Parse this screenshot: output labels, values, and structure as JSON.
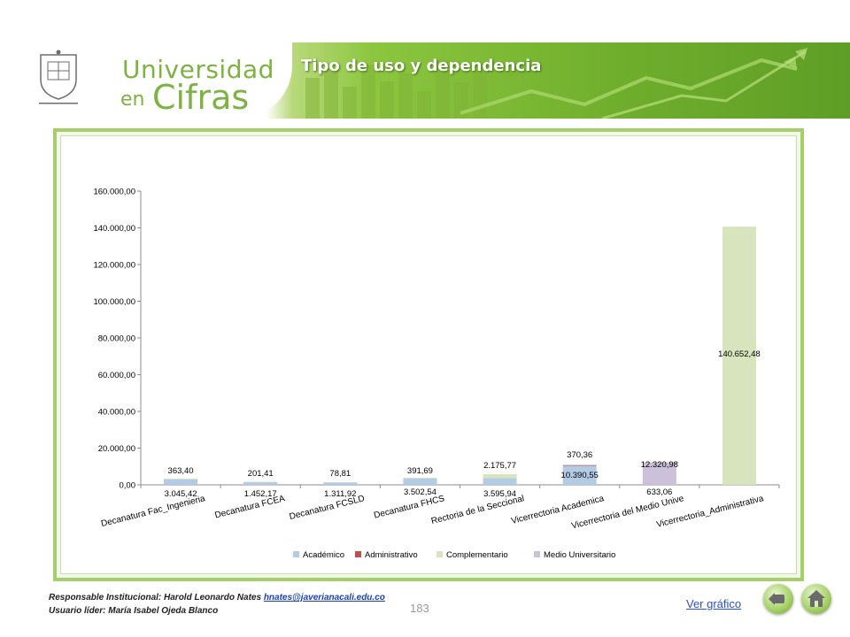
{
  "header": {
    "logo_text": "Pontificia Universidad JAVERIANA",
    "brand_line1": "Universidad",
    "brand_en": "en",
    "brand_cifras": "Cifras",
    "title": "Tipo de uso y dependencia"
  },
  "footer": {
    "responsable_prefix": "Responsable Institucional: Harold Leonardo Nates ",
    "responsable_email": "hnates@javerianacali.edu.co",
    "usuario": "Usuario líder: María Isabel Ojeda Blanco",
    "page_number": "183",
    "ver_grafico": "Ver gráfico",
    "back_icon": "arrow-left-icon",
    "home_icon": "home-icon"
  },
  "colors": {
    "Académico": "#b4cbe5",
    "Administrativo": "#c0504d",
    "Complementario": "#d7e4bd",
    "Medio Universitario": "#ccc1da"
  },
  "chart_data": {
    "type": "bar",
    "stacked": true,
    "categories": [
      "Decanatura Fac_Ingenieria",
      "Decanatura FCEA",
      "Decanatura FCSLD",
      "Decanatura FHCS",
      "Rectoria de la Seccional",
      "Vicerrectoria Academica",
      "Vicerrectoria del Medio Unive",
      "Vicerrectoria_Administrativa"
    ],
    "series": [
      {
        "name": "Académico",
        "values": [
          3045.42,
          1452.17,
          1311.92,
          3502.54,
          3595.94,
          10390.55,
          0,
          0
        ],
        "labels": [
          "3.045,42",
          "1.452,17",
          "1.311,92",
          "3.502,54",
          "3.595,94",
          "10.390,55",
          "",
          ""
        ]
      },
      {
        "name": "Administrativo",
        "values": [
          0,
          0,
          0,
          0,
          0,
          370.36,
          0,
          0
        ],
        "labels": [
          "",
          "",
          "",
          "",
          "",
          "370,36",
          "",
          ""
        ]
      },
      {
        "name": "Complementario",
        "values": [
          363.4,
          201.41,
          78.81,
          391.69,
          2175.77,
          0,
          0,
          140652.48
        ],
        "labels": [
          "363,40",
          "201,41",
          "78,81",
          "391,69",
          "2.175,77",
          "",
          "",
          "140.652,48"
        ]
      },
      {
        "name": "Medio Universitario",
        "values": [
          0,
          0,
          0,
          0,
          0,
          0,
          12320.98,
          0
        ],
        "labels": [
          "",
          "",
          "",
          "",
          "",
          "",
          "12.320,98",
          ""
        ]
      }
    ],
    "extra_labels": [
      {
        "category_index": 6,
        "text": "633,06"
      }
    ],
    "ylim": [
      0,
      160000
    ],
    "yticks": [
      "0,00",
      "20.000,00",
      "40.000,00",
      "60.000,00",
      "80.000,00",
      "100.000,00",
      "120.000,00",
      "140.000,00",
      "160.000,00"
    ],
    "legend_position": "bottom",
    "grid": false
  }
}
